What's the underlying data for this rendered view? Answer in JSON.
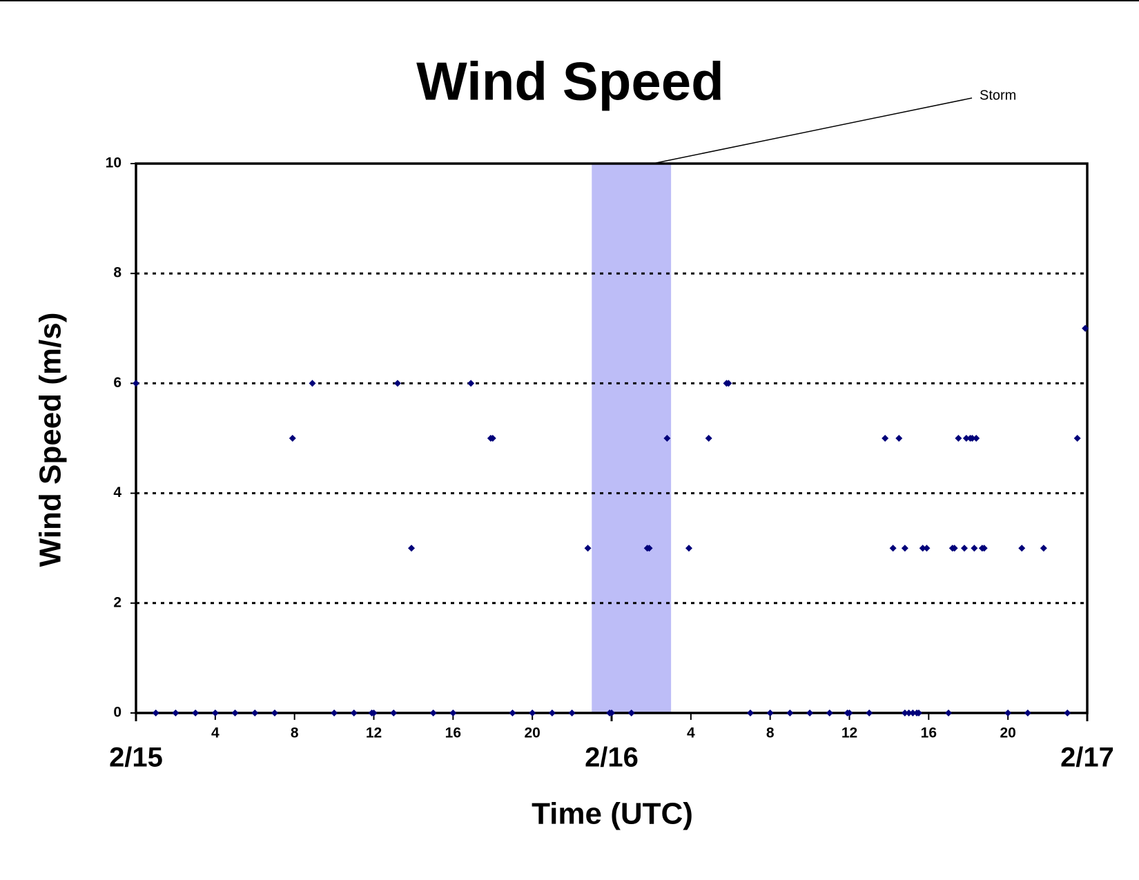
{
  "chart_data": {
    "type": "scatter",
    "title": "Wind Speed",
    "xlabel": "Time (UTC)",
    "ylabel": "Wind Speed (m/s)",
    "xlim": [
      0,
      48
    ],
    "ylim": [
      0,
      10
    ],
    "yticks": [
      0,
      2,
      4,
      6,
      8,
      10
    ],
    "xticks": [
      4,
      8,
      12,
      16,
      20,
      {
        "value": 28,
        "label": "4"
      },
      {
        "value": 32,
        "label": "8"
      },
      {
        "value": 36,
        "label": "12"
      },
      {
        "value": 40,
        "label": "16"
      },
      {
        "value": 44,
        "label": "20"
      }
    ],
    "date_ticks": [
      {
        "value": 0,
        "label": "2/15"
      },
      {
        "value": 24,
        "label": "2/16"
      },
      {
        "value": 48,
        "label": "2/17"
      }
    ],
    "grid": true,
    "color": "#00007a",
    "x": [
      0,
      1,
      2,
      3,
      4,
      5,
      6,
      7,
      7.9,
      8.9,
      10,
      11,
      11.9,
      12,
      13,
      13.2,
      13.9,
      15,
      16,
      16.9,
      17.9,
      18,
      19,
      20,
      21,
      22,
      22.8,
      23.9,
      24,
      25,
      25.8,
      25.9,
      26.8,
      27.9,
      28.9,
      29.8,
      29.9,
      31,
      32,
      33,
      34,
      35,
      35.9,
      36,
      37,
      37.8,
      38.2,
      38.5,
      38.8,
      38.8,
      39,
      39.2,
      39.4,
      39.5,
      39.7,
      39.9,
      41,
      41.2,
      41.3,
      41.5,
      41.8,
      41.9,
      42.1,
      42.2,
      42.3,
      42.4,
      42.7,
      42.8,
      44,
      44.7,
      45,
      45.8,
      47,
      47.5,
      47.9
    ],
    "values": [
      6,
      0,
      0,
      0,
      0,
      0,
      0,
      0,
      5,
      6,
      0,
      0,
      0,
      0,
      0,
      6,
      3,
      0,
      0,
      6,
      5,
      5,
      0,
      0,
      0,
      0,
      3,
      0,
      0,
      0,
      3,
      3,
      5,
      3,
      5,
      6,
      6,
      0,
      0,
      0,
      0,
      0,
      0,
      0,
      0,
      5,
      3,
      5,
      3,
      0,
      0,
      0,
      0,
      0,
      3,
      3,
      0,
      3,
      3,
      5,
      3,
      5,
      5,
      5,
      3,
      5,
      3,
      3,
      0,
      3,
      0,
      3,
      0,
      5,
      7
    ],
    "band": {
      "label": "Storm",
      "x": [
        23,
        27
      ],
      "color": "#bdbdf7"
    }
  }
}
